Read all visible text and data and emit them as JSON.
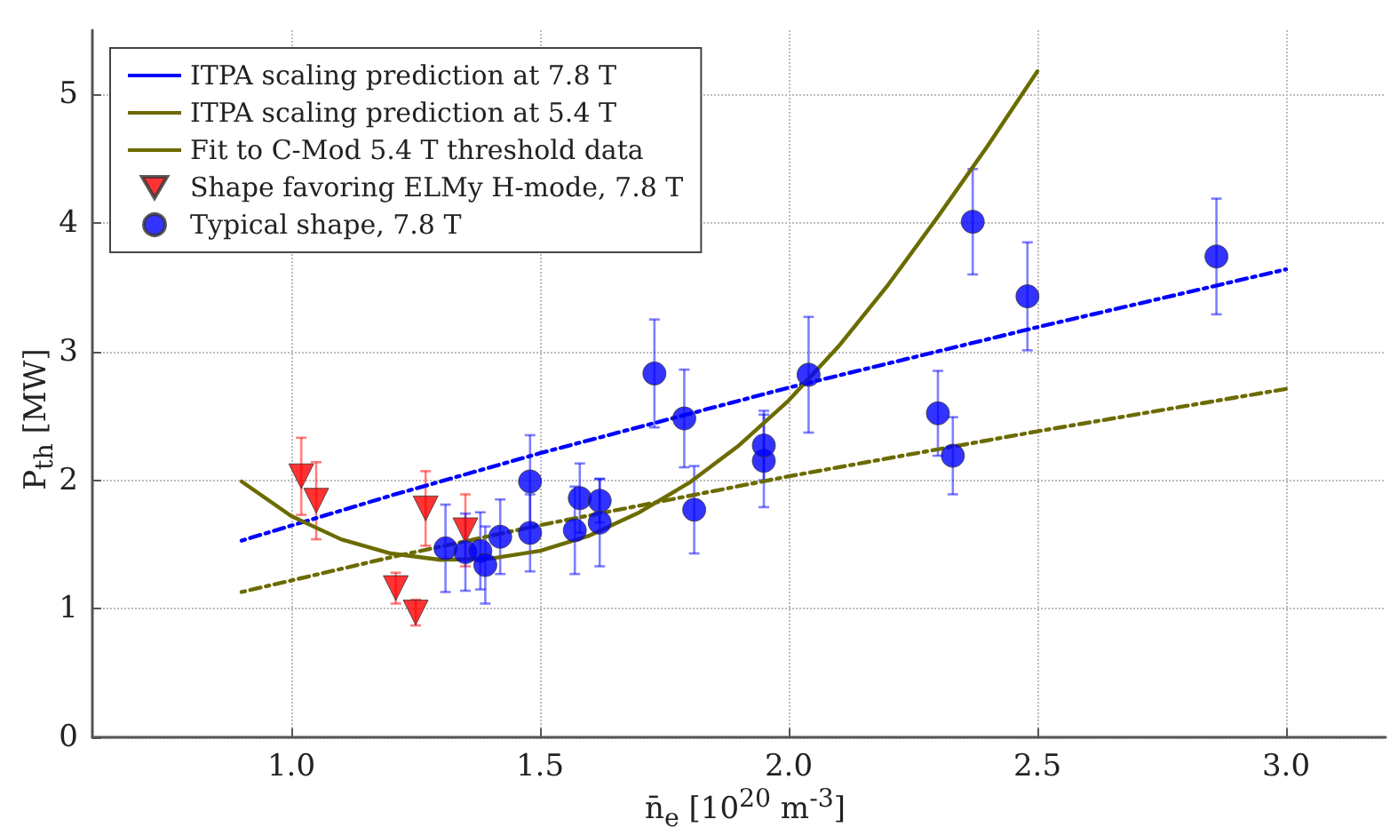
{
  "chart_data": {
    "type": "scatter",
    "xlabel": "n̄$_{e}$ [10$^{20}$ m$^{-3}$]",
    "ylabel": "P$_{th}$ [MW]",
    "xlim": [
      0.6,
      3.2
    ],
    "xticks": [
      {
        "value": 1.0,
        "label": "1.0"
      },
      {
        "value": 1.5,
        "label": "1.5"
      },
      {
        "value": 2.0,
        "label": "2.0"
      },
      {
        "value": 2.5,
        "label": "2.5"
      },
      {
        "value": 3.0,
        "label": "3.0"
      }
    ],
    "ylim": [
      0,
      5.5
    ],
    "yticks": [
      0,
      1,
      2,
      3,
      4,
      5
    ],
    "grid": true,
    "legend": "top left",
    "series": [
      {
        "name": "ITPA scaling prediction at 7.8 T",
        "type": "line",
        "line_style": "dotted",
        "marker": "none",
        "color": "#0000ff",
        "x": [
          0.9,
          1.2,
          1.5,
          2.0,
          2.5,
          3.0
        ],
        "values": [
          1.53,
          1.88,
          2.21,
          2.72,
          3.19,
          3.64
        ]
      },
      {
        "name": "ITPA scaling prediction at 5.4 T",
        "type": "line",
        "line_style": "dotted",
        "marker": "none",
        "color": "#6b6b00",
        "x": [
          0.9,
          1.2,
          1.5,
          2.0,
          2.5,
          3.0
        ],
        "values": [
          1.13,
          1.4,
          1.65,
          2.03,
          2.38,
          2.71
        ]
      },
      {
        "name": "Fit to C-Mod 5.4 T threshold data",
        "type": "line",
        "line_style": "solid",
        "marker": "none",
        "color": "#6b6b00",
        "x": [
          0.9,
          1.0,
          1.1,
          1.2,
          1.3,
          1.4,
          1.5,
          1.6,
          1.7,
          1.8,
          1.9,
          2.0,
          2.1,
          2.2,
          2.3,
          2.4,
          2.5
        ],
        "values": [
          1.99,
          1.72,
          1.54,
          1.43,
          1.38,
          1.39,
          1.45,
          1.57,
          1.75,
          1.98,
          2.27,
          2.62,
          3.04,
          3.52,
          4.05,
          4.6,
          5.18
        ]
      },
      {
        "name": "Shape favoring ELMy H-mode, 7.8 T",
        "marker": "triangle",
        "color": "#ff0000",
        "x": [
          1.02,
          1.05,
          1.21,
          1.25,
          1.27,
          1.35
        ],
        "values": [
          2.03,
          1.84,
          1.16,
          0.97,
          1.78,
          1.61
        ],
        "errors": [
          0.3,
          0.3,
          0.12,
          0.1,
          0.29,
          0.28
        ]
      },
      {
        "name": "Typical shape, 7.8 T",
        "marker": "circle",
        "color": "#0000ff",
        "x": [
          1.31,
          1.35,
          1.38,
          1.39,
          1.42,
          1.48,
          1.48,
          1.58,
          1.57,
          1.62,
          1.62,
          1.73,
          1.79,
          1.81,
          1.95,
          1.95,
          2.04,
          2.3,
          2.33,
          2.37,
          2.48,
          2.86
        ],
        "values": [
          1.47,
          1.44,
          1.45,
          1.34,
          1.56,
          1.99,
          1.59,
          1.86,
          1.61,
          1.84,
          1.67,
          2.83,
          2.48,
          1.77,
          2.15,
          2.27,
          2.82,
          2.52,
          2.19,
          4.01,
          3.43,
          3.74
        ],
        "errors": [
          0.34,
          0.3,
          0.3,
          0.3,
          0.29,
          0.36,
          0.3,
          0.27,
          0.34,
          0.17,
          0.34,
          0.42,
          0.38,
          0.34,
          0.36,
          0.27,
          0.45,
          0.33,
          0.3,
          0.41,
          0.42,
          0.45
        ]
      }
    ]
  }
}
